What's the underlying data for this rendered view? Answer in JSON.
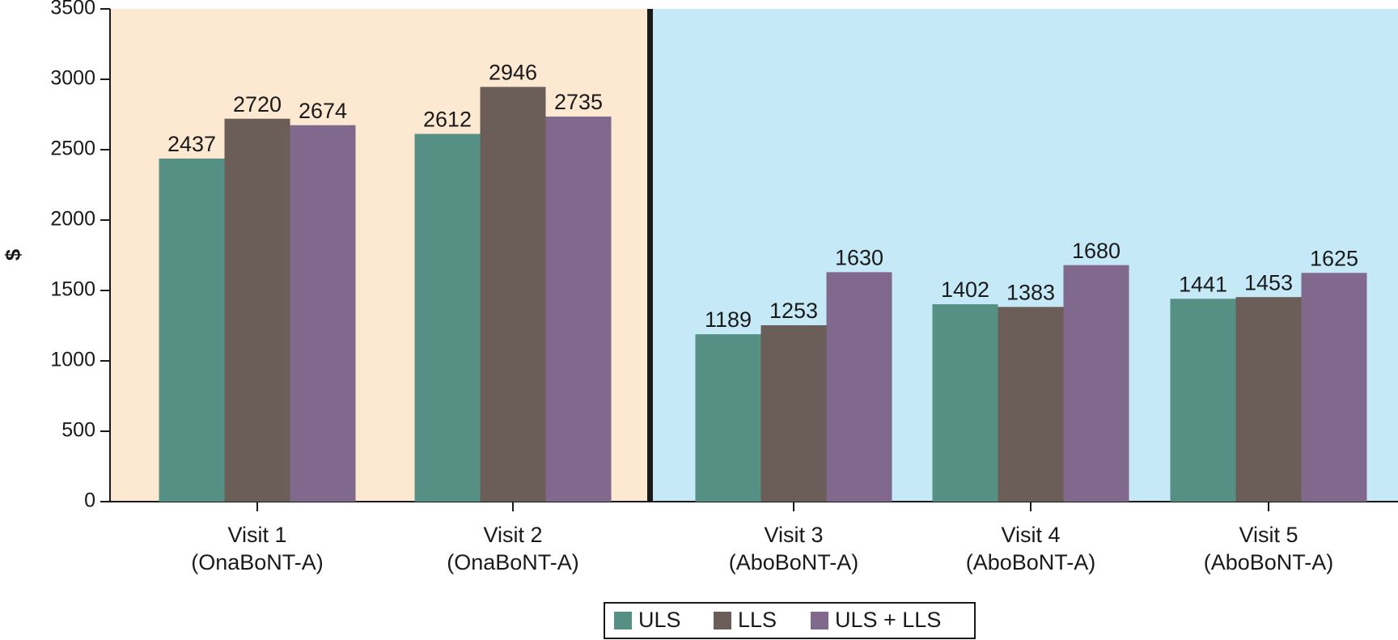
{
  "chart_data": {
    "type": "bar",
    "y_label": "$",
    "categories": [
      "Visit 1\n(OnaBoNT-A)",
      "Visit 2\n(OnaBoNT-A)",
      "Visit 3\n(AboBoNT-A)",
      "Visit 4\n(AboBoNT-A)",
      "Visit 5\n(AboBoNT-A)"
    ],
    "series": [
      {
        "name": "ULS",
        "color": "#568f84",
        "values": [
          2437,
          2612,
          1189,
          1402,
          1441
        ]
      },
      {
        "name": "LLS",
        "color": "#6b5d58",
        "values": [
          2720,
          2946,
          1253,
          1383,
          1453
        ]
      },
      {
        "name": "ULS + LLS",
        "color": "#80698c",
        "values": [
          2674,
          2735,
          1630,
          1680,
          1625
        ]
      }
    ],
    "ylim": [
      0,
      3500
    ],
    "yticks": [
      0,
      500,
      1000,
      1500,
      2000,
      2500,
      3000,
      3500
    ],
    "legend": "bottom"
  }
}
